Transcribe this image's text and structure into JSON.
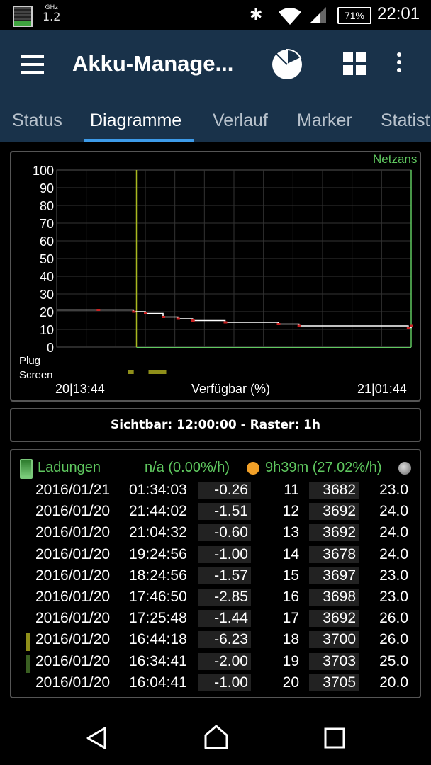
{
  "statusbar": {
    "ghz_label": "GHz",
    "ghz_value": "1.2",
    "battery_percent": "71%",
    "time": "22:01"
  },
  "appbar": {
    "title": "Akku-Manage...",
    "tabs": [
      "Status",
      "Diagramme",
      "Verlauf",
      "Marker",
      "Statist"
    ],
    "active_tab": "Diagramme"
  },
  "chart": {
    "corner_label": "Netzans",
    "plug_label": "Plug",
    "screen_label": "Screen",
    "start_label": "20|13:44",
    "end_label": "21|01:44",
    "xlabel": "Verfügbar (%)"
  },
  "chart_data": {
    "type": "line",
    "title": "",
    "xlabel": "Verfügbar (%)",
    "ylabel": "",
    "ylim": [
      0,
      100
    ],
    "yticks": [
      0,
      10,
      20,
      30,
      40,
      50,
      60,
      70,
      80,
      90,
      100
    ],
    "x_start": "20|13:44",
    "x_end": "21|01:44",
    "series": [
      {
        "x_hours": [
          0,
          1.4,
          2.6,
          3.0,
          3.6,
          4.1,
          4.6,
          5.7,
          7.5,
          8.2,
          11.9,
          12.0
        ],
        "values": [
          21,
          21,
          20,
          19,
          17,
          16,
          15,
          14,
          13,
          12,
          11,
          12
        ]
      }
    ],
    "color": "#ffffff",
    "marker_lines_hours": [
      2.7,
      12.0
    ],
    "screen_on_hours": [
      [
        2.6,
        2.8
      ],
      [
        3.3,
        3.9
      ]
    ]
  },
  "visible_info": "Sichtbar: 12:00:00 - Raster: 1h",
  "ladungen": {
    "label": "Ladungen",
    "rate": "n/a (0.00%/h)",
    "remaining": "9h39m (27.02%/h)"
  },
  "table": {
    "rows": [
      {
        "date": "2016/01/21",
        "time": "01:34:03",
        "rate": "-0.26",
        "pct": "11",
        "mv": "3682",
        "temp": "23.0",
        "marker": ""
      },
      {
        "date": "2016/01/20",
        "time": "21:44:02",
        "rate": "-1.51",
        "pct": "12",
        "mv": "3692",
        "temp": "24.0",
        "marker": ""
      },
      {
        "date": "2016/01/20",
        "time": "21:04:32",
        "rate": "-0.60",
        "pct": "13",
        "mv": "3692",
        "temp": "24.0",
        "marker": ""
      },
      {
        "date": "2016/01/20",
        "time": "19:24:56",
        "rate": "-1.00",
        "pct": "14",
        "mv": "3678",
        "temp": "24.0",
        "marker": ""
      },
      {
        "date": "2016/01/20",
        "time": "18:24:56",
        "rate": "-1.57",
        "pct": "15",
        "mv": "3697",
        "temp": "23.0",
        "marker": ""
      },
      {
        "date": "2016/01/20",
        "time": "17:46:50",
        "rate": "-2.85",
        "pct": "16",
        "mv": "3698",
        "temp": "23.0",
        "marker": ""
      },
      {
        "date": "2016/01/20",
        "time": "17:25:48",
        "rate": "-1.44",
        "pct": "17",
        "mv": "3692",
        "temp": "26.0",
        "marker": ""
      },
      {
        "date": "2016/01/20",
        "time": "16:44:18",
        "rate": "-6.23",
        "pct": "18",
        "mv": "3700",
        "temp": "26.0",
        "marker": "#8f8f1a"
      },
      {
        "date": "2016/01/20",
        "time": "16:34:41",
        "rate": "-2.00",
        "pct": "19",
        "mv": "3703",
        "temp": "25.0",
        "marker": "#3a5f22"
      },
      {
        "date": "2016/01/20",
        "time": "16:04:41",
        "rate": "-1.00",
        "pct": "20",
        "mv": "3705",
        "temp": "20.0",
        "marker": ""
      }
    ]
  },
  "colors": {
    "appbar_bg": "#19324a",
    "tab_indicator": "#3d9be9",
    "green_text": "#5fc85f",
    "screen_marker": "#8f8f1a"
  },
  "icons": {
    "menu": "hamburger-icon",
    "chart": "pie-chart-icon",
    "widgets": "grid-icon",
    "more": "more-vert-icon"
  }
}
